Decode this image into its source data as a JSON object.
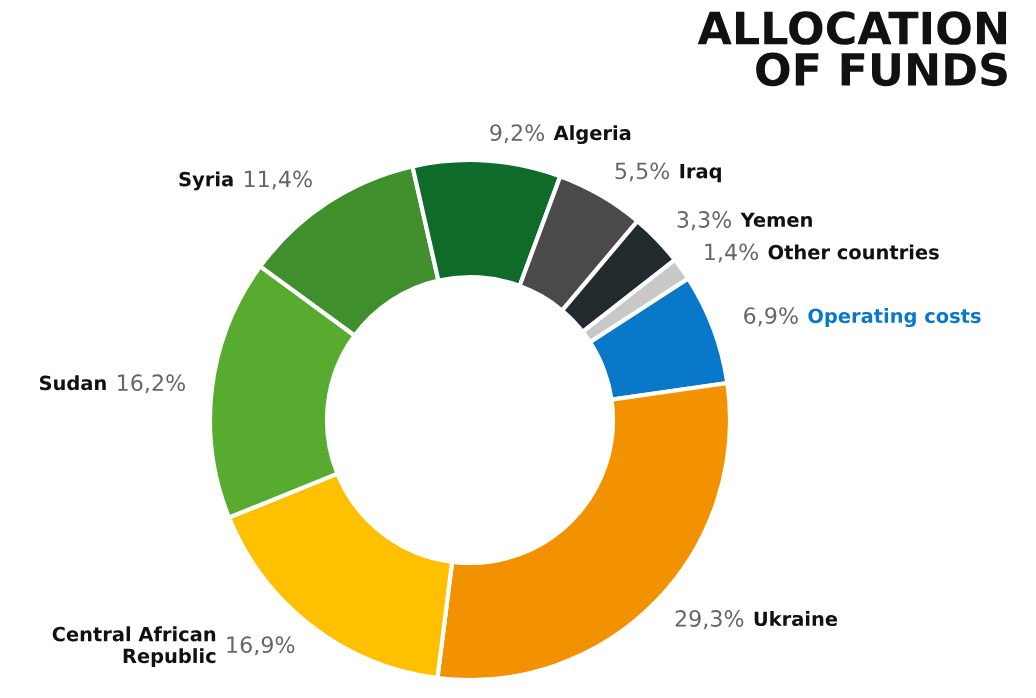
{
  "chart_data": {
    "type": "donut",
    "title": "ALLOCATION\nOF FUNDS",
    "categories": [
      "Operating costs",
      "Ukraine",
      "Central African Republic",
      "Sudan",
      "Syria",
      "Algeria",
      "Iraq",
      "Yemen",
      "Other countries"
    ],
    "values": [
      6.9,
      29.3,
      16.9,
      16.2,
      11.4,
      9.2,
      5.5,
      3.3,
      1.4
    ],
    "value_labels": [
      "6,9%",
      "29,3%",
      "16,9%",
      "16,2%",
      "11,4%",
      "9,2%",
      "5,5%",
      "3,3%",
      "1,4%"
    ],
    "colors": [
      "#0a78c8",
      "#f39200",
      "#ffc000",
      "#57ab2f",
      "#3f8f2c",
      "#0f6b2a",
      "#4a4a4a",
      "#222a2e",
      "#c8c8c8"
    ],
    "legend": false
  }
}
